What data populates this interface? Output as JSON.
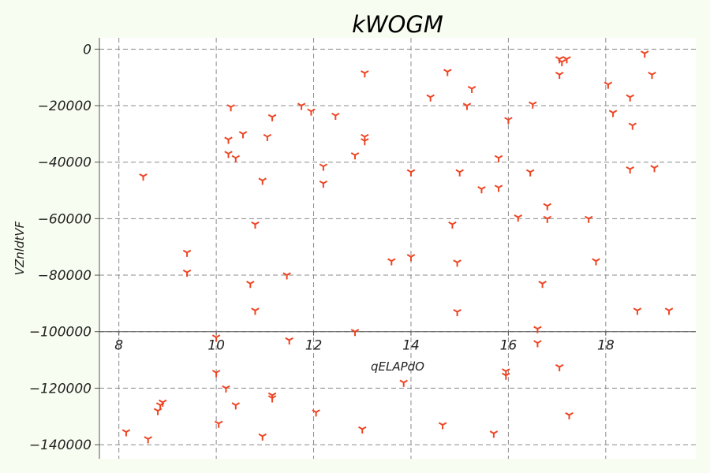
{
  "chart_data": {
    "type": "scatter",
    "title": "kWOGM",
    "xlabel": "qELAPdO",
    "ylabel": "VZnldtVF",
    "xlim": [
      7.6,
      19.85
    ],
    "ylim": [
      -145000,
      4000
    ],
    "x_ticks": [
      8,
      10,
      12,
      14,
      16,
      18
    ],
    "y_ticks": [
      0,
      -20000,
      -40000,
      -60000,
      -80000,
      -100000,
      -120000,
      -140000
    ],
    "x_tick_labels": [
      "8",
      "10",
      "12",
      "14",
      "16",
      "18"
    ],
    "y_tick_labels": [
      "0",
      "−20000",
      "−40000",
      "−60000",
      "−80000",
      "−100000",
      "−120000",
      "−140000"
    ],
    "x_axis_position_y": -100000,
    "grid": true,
    "marker": "tri-down",
    "colors": {
      "marker": "#ee4422",
      "grid": "#8a8a8a",
      "background": "#f8fdf1",
      "plot_area": "#ffffff"
    },
    "series": [
      {
        "points": [
          [
            8.5,
            -45000
          ],
          [
            8.15,
            -135500
          ],
          [
            8.6,
            -138000
          ],
          [
            8.8,
            -128000
          ],
          [
            8.85,
            -126000
          ],
          [
            8.9,
            -125000
          ],
          [
            9.4,
            -72000
          ],
          [
            9.4,
            -79000
          ],
          [
            10.0,
            -102000
          ],
          [
            10.0,
            -114500
          ],
          [
            10.05,
            -132500
          ],
          [
            10.2,
            -120000
          ],
          [
            10.3,
            -20500
          ],
          [
            10.25,
            -32000
          ],
          [
            10.25,
            -37000
          ],
          [
            10.4,
            -38500
          ],
          [
            10.4,
            -126000
          ],
          [
            10.55,
            -30000
          ],
          [
            10.7,
            -83000
          ],
          [
            10.8,
            -62000
          ],
          [
            10.8,
            -92500
          ],
          [
            10.95,
            -46500
          ],
          [
            10.95,
            -137000
          ],
          [
            11.05,
            -31000
          ],
          [
            11.15,
            -24000
          ],
          [
            11.15,
            -122500
          ],
          [
            11.15,
            -123500
          ],
          [
            11.45,
            -80000
          ],
          [
            11.5,
            -103000
          ],
          [
            11.75,
            -20000
          ],
          [
            11.95,
            -22000
          ],
          [
            12.05,
            -128500
          ],
          [
            12.2,
            -41500
          ],
          [
            12.2,
            -47500
          ],
          [
            12.45,
            -23500
          ],
          [
            12.85,
            -37500
          ],
          [
            12.85,
            -100000
          ],
          [
            13.05,
            -8500
          ],
          [
            13.05,
            -31000
          ],
          [
            13.05,
            -32500
          ],
          [
            13.0,
            -134500
          ],
          [
            13.6,
            -75000
          ],
          [
            13.85,
            -118000
          ],
          [
            14.0,
            -43500
          ],
          [
            14.0,
            -73500
          ],
          [
            14.4,
            -17000
          ],
          [
            14.65,
            -133000
          ],
          [
            14.75,
            -8000
          ],
          [
            14.85,
            -62000
          ],
          [
            14.95,
            -75500
          ],
          [
            14.95,
            -93000
          ],
          [
            15.0,
            -43500
          ],
          [
            15.15,
            -20000
          ],
          [
            15.25,
            -14000
          ],
          [
            15.45,
            -49500
          ],
          [
            15.7,
            -136000
          ],
          [
            15.8,
            -38500
          ],
          [
            15.8,
            -49000
          ],
          [
            15.95,
            -114000
          ],
          [
            15.95,
            -115500
          ],
          [
            16.0,
            -25000
          ],
          [
            16.2,
            -59500
          ],
          [
            16.45,
            -43500
          ],
          [
            16.5,
            -19500
          ],
          [
            16.6,
            -99000
          ],
          [
            16.6,
            -104000
          ],
          [
            16.7,
            -83000
          ],
          [
            16.8,
            -55500
          ],
          [
            16.8,
            -60000
          ],
          [
            17.05,
            -3500
          ],
          [
            17.1,
            -4500
          ],
          [
            17.05,
            -9000
          ],
          [
            17.05,
            -112500
          ],
          [
            17.2,
            -3500
          ],
          [
            17.25,
            -129500
          ],
          [
            17.65,
            -60000
          ],
          [
            17.8,
            -75000
          ],
          [
            18.05,
            -12500
          ],
          [
            18.15,
            -22500
          ],
          [
            18.5,
            -17000
          ],
          [
            18.5,
            -42500
          ],
          [
            18.55,
            -27000
          ],
          [
            18.65,
            -92500
          ],
          [
            18.8,
            -1500
          ],
          [
            18.95,
            -9000
          ],
          [
            19.0,
            -42000
          ],
          [
            19.3,
            -92500
          ]
        ]
      }
    ]
  }
}
